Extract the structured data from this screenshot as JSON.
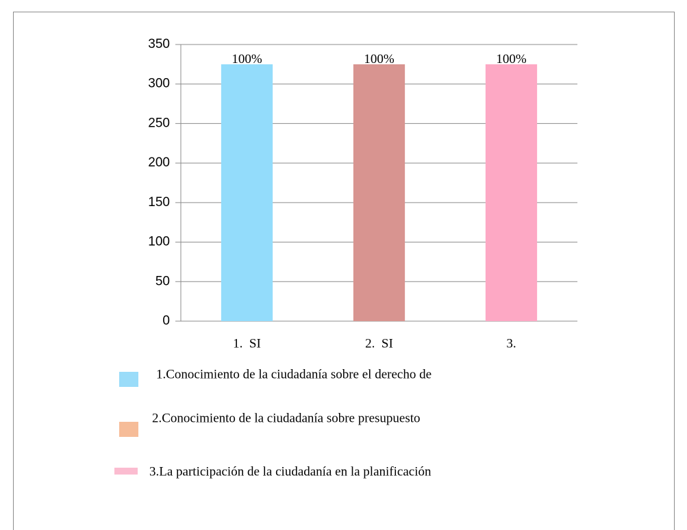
{
  "chart_data": {
    "type": "bar",
    "categories": [
      "1.  SI",
      "2.  SI",
      "3."
    ],
    "values": [
      325,
      325,
      325
    ],
    "colors": [
      "#93dcfb",
      "#d89490",
      "#fda8c4"
    ],
    "annotations": [
      "100%",
      "100%",
      "100%"
    ],
    "ylim": [
      0,
      350
    ],
    "yticks": [
      0,
      50,
      100,
      150,
      200,
      250,
      300,
      350
    ],
    "grid": true,
    "legend": [
      {
        "name": "1.Conocimiento de la ciudadanía sobre el derecho de",
        "color": "#9adcf9"
      },
      {
        "name": "2.Conocimiento de la ciudadanía sobre presupuesto",
        "color": "#f6bc98"
      },
      {
        "name": "3.La participación de la ciudadanía en la planificación",
        "color": "#fbbcd0"
      }
    ]
  }
}
